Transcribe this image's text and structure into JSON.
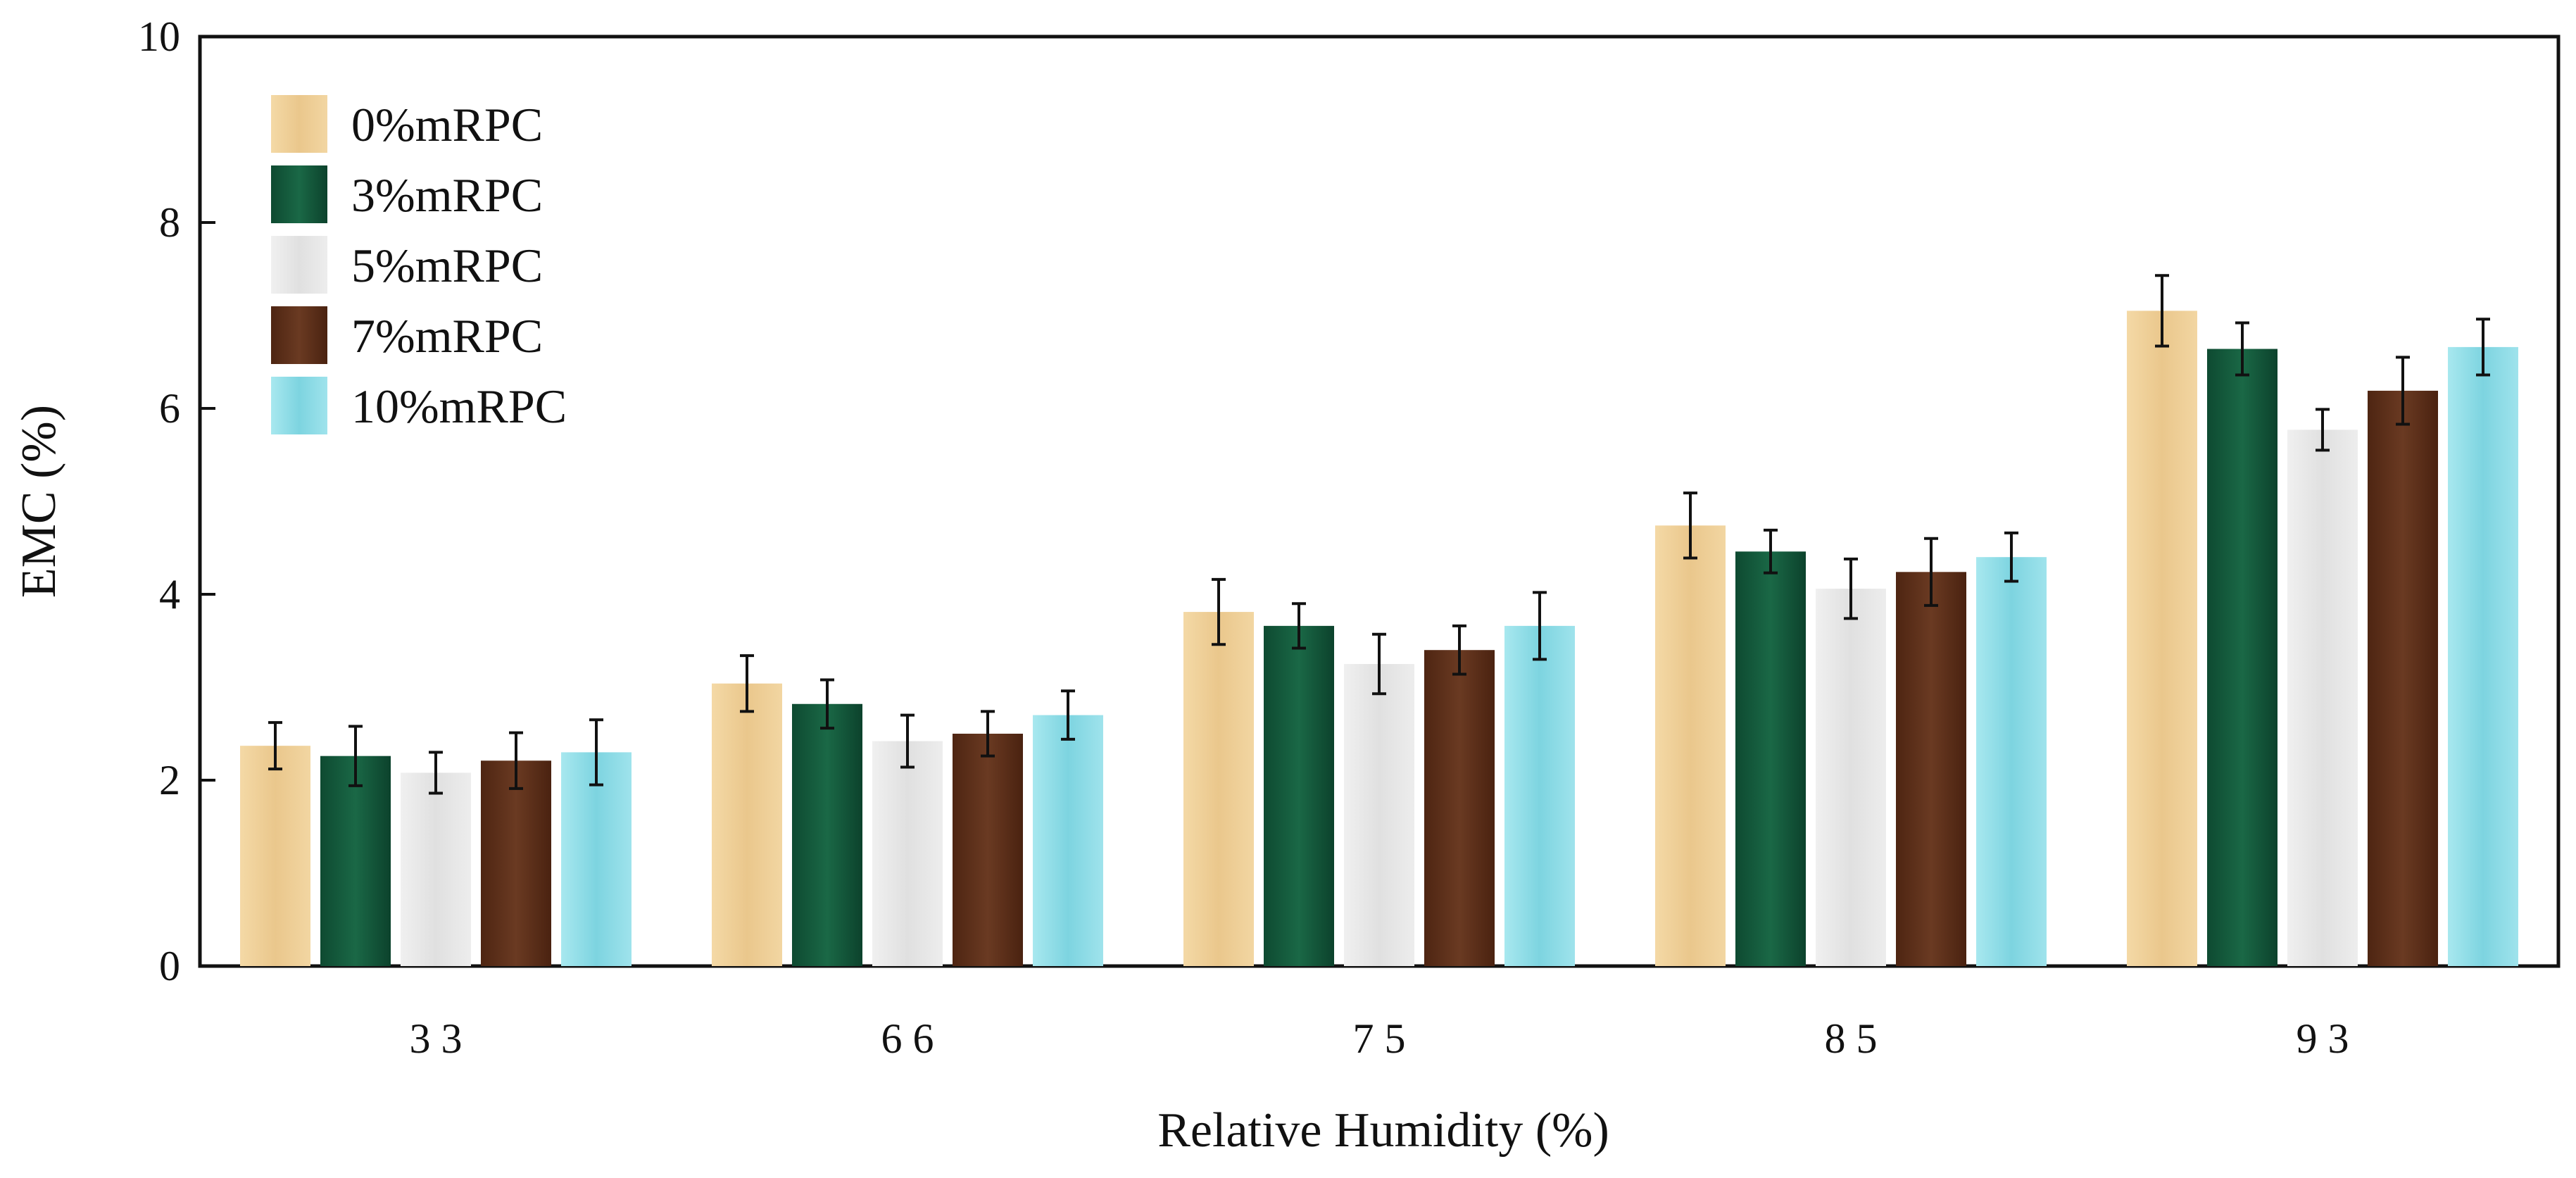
{
  "chart_data": {
    "type": "bar",
    "title": "",
    "xlabel": "Relative Humidity (%)",
    "ylabel": "EMC (%)",
    "ylim": [
      0,
      10
    ],
    "yticks": [
      "0",
      "2",
      "4",
      "6",
      "8",
      "10"
    ],
    "ytick_values": [
      0,
      2,
      4,
      6,
      8,
      10
    ],
    "categories": [
      "3 3",
      "6 6",
      "7 5",
      "8 5",
      "9 3"
    ],
    "legend_position": "top-left",
    "grid": false,
    "series": [
      {
        "name": "0%mRPC",
        "color": "#EBC98F",
        "values": [
          2.37,
          3.04,
          3.81,
          4.74,
          7.05
        ],
        "errors": [
          0.25,
          0.3,
          0.35,
          0.35,
          0.38
        ]
      },
      {
        "name": "3%mRPC",
        "color": "#11553A",
        "values": [
          2.26,
          2.82,
          3.66,
          4.46,
          6.64
        ],
        "errors": [
          0.32,
          0.26,
          0.24,
          0.23,
          0.28
        ]
      },
      {
        "name": "5%mRPC",
        "color": "#E6E6E6",
        "values": [
          2.08,
          2.42,
          3.25,
          4.06,
          5.77
        ],
        "errors": [
          0.22,
          0.28,
          0.32,
          0.32,
          0.22
        ]
      },
      {
        "name": "7%mRPC",
        "color": "#5A2D17",
        "values": [
          2.21,
          2.5,
          3.4,
          4.24,
          6.19
        ],
        "errors": [
          0.3,
          0.24,
          0.26,
          0.36,
          0.36
        ]
      },
      {
        "name": "10%mRPC",
        "color": "#86D9E3",
        "values": [
          2.3,
          2.7,
          3.66,
          4.4,
          6.66
        ],
        "errors": [
          0.35,
          0.26,
          0.36,
          0.26,
          0.3
        ]
      }
    ]
  }
}
